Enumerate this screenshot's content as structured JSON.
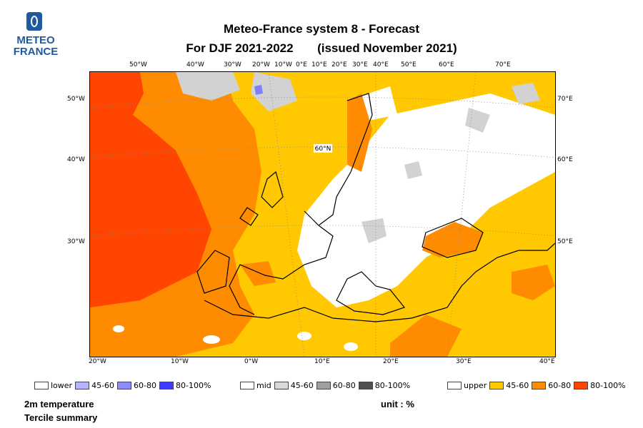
{
  "logo": {
    "line1": "METEO",
    "line2": "FRANCE"
  },
  "title": {
    "line1": "Meteo-France system 8  -  Forecast",
    "line2_a": "For DJF 2021-2022",
    "line2_b": "(issued November 2021)"
  },
  "map": {
    "top_labels": [
      "50°W",
      "40°W",
      "30°W",
      "20°W",
      "10°W",
      "0°E",
      "10°E",
      "20°E",
      "30°E",
      "40°E",
      "50°E",
      "60°E",
      "70°E"
    ],
    "left_labels": [
      "50°W",
      "40°W",
      "30°W"
    ],
    "right_labels": [
      "70°E",
      "60°E",
      "50°E"
    ],
    "bottom_labels": [
      "20°W",
      "10°W",
      "0°W",
      "10°E",
      "20°E",
      "30°E",
      "40°E"
    ],
    "inner_label": "60°N",
    "colors": {
      "white": "#ffffff",
      "mid": "#d2d2d2",
      "upper_45_60": "#ffc800",
      "upper_60_80": "#ff8c00",
      "upper_80_100": "#ff4500"
    }
  },
  "legend": {
    "lower": {
      "label": "lower",
      "b1": "45-60",
      "b2": "60-80",
      "b3": "80-100%",
      "colors": [
        "#ffffff",
        "#b4b4ff",
        "#8c8cff",
        "#3c3cff"
      ]
    },
    "mid": {
      "label": "mid",
      "b1": "45-60",
      "b2": "60-80",
      "b3": "80-100%",
      "colors": [
        "#ffffff",
        "#d9d9d9",
        "#a0a0a0",
        "#505050"
      ]
    },
    "upper": {
      "label": "upper",
      "b1": "45-60",
      "b2": "60-80",
      "b3": "80-100%",
      "colors": [
        "#ffffff",
        "#ffc800",
        "#ff8c00",
        "#ff4500"
      ]
    }
  },
  "footer": {
    "var": "2m temperature",
    "summary": "Tercile summary",
    "unit": "unit : %"
  }
}
